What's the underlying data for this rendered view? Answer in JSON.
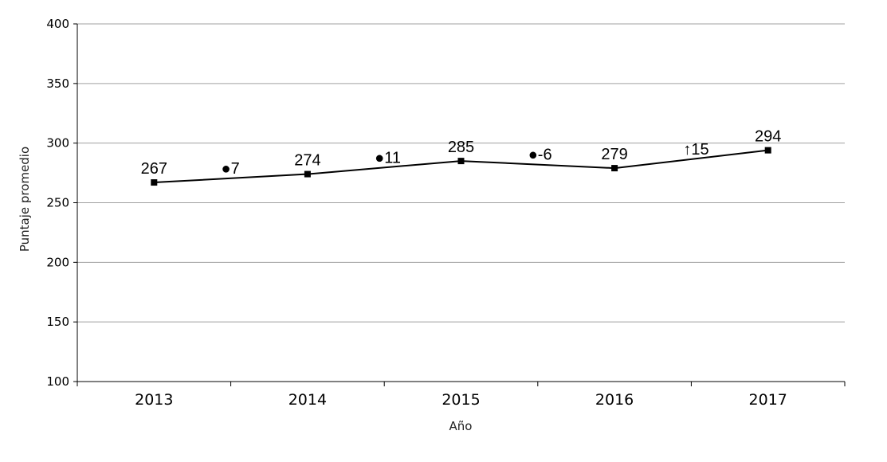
{
  "chart_data": {
    "type": "line",
    "title": "",
    "xlabel": "Año",
    "ylabel": "Puntaje promedio",
    "categories": [
      "2013",
      "2014",
      "2015",
      "2016",
      "2017"
    ],
    "series": [
      {
        "values": [
          267,
          274,
          285,
          279,
          294
        ],
        "color": "#000000",
        "marker": "square"
      }
    ],
    "data_labels": [
      "267",
      "274",
      "285",
      "279",
      "294"
    ],
    "changes": [
      {
        "between": [
          "2013",
          "2014"
        ],
        "marker": "●",
        "text": "7"
      },
      {
        "between": [
          "2014",
          "2015"
        ],
        "marker": "●",
        "text": "11"
      },
      {
        "between": [
          "2015",
          "2016"
        ],
        "marker": "●",
        "text": "-6"
      },
      {
        "between": [
          "2016",
          "2017"
        ],
        "marker": "↑",
        "text": "15"
      }
    ],
    "yticks": [
      "100",
      "150",
      "200",
      "250",
      "300",
      "350",
      "400"
    ],
    "ylim": [
      100,
      400
    ],
    "grid": true,
    "legend": "none"
  }
}
